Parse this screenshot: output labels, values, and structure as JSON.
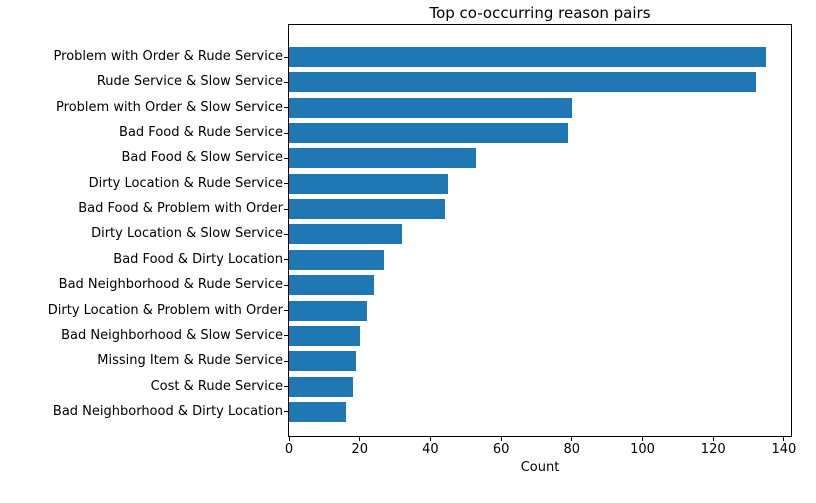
{
  "chart_data": {
    "type": "bar",
    "orientation": "horizontal",
    "title": "Top co-occurring reason pairs",
    "xlabel": "Count",
    "ylabel": "",
    "categories": [
      "Problem with Order & Rude Service",
      "Rude Service & Slow Service",
      "Problem with Order & Slow Service",
      "Bad Food & Rude Service",
      "Bad Food & Slow Service",
      "Dirty Location & Rude Service",
      "Bad Food & Problem with Order",
      "Dirty Location & Slow Service",
      "Bad Food & Dirty Location",
      "Bad Neighborhood & Rude Service",
      "Dirty Location & Problem with Order",
      "Bad Neighborhood & Slow Service",
      "Missing Item & Rude Service",
      "Cost & Rude Service",
      "Bad Neighborhood & Dirty Location"
    ],
    "values": [
      135,
      132,
      80,
      79,
      53,
      45,
      44,
      32,
      27,
      24,
      22,
      20,
      19,
      18,
      16
    ],
    "xticks": [
      0,
      20,
      40,
      60,
      80,
      100,
      120,
      140
    ],
    "xlim": [
      0,
      142
    ],
    "bar_color": "#1f77b4",
    "grid": false,
    "legend_position": "none"
  }
}
